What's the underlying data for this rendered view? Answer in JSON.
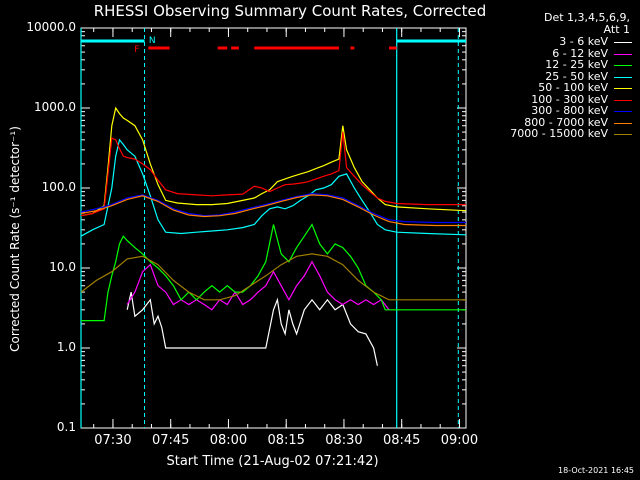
{
  "chart_data": {
    "type": "line",
    "title": "RHESSI Observing Summary Count Rates, Corrected",
    "xlabel": "Start Time (21-Aug-02 07:21:42)",
    "ylabel": "Corrected Count Rate (s⁻¹ detector⁻¹)",
    "yscale": "log",
    "ylim": [
      0.1,
      10000
    ],
    "xlim_minutes": [
      0,
      100
    ],
    "yticks": [
      "0.1",
      "1.0",
      "10.0",
      "100.0",
      "1000.0",
      "10000.0"
    ],
    "xticks": [
      {
        "label": "07:30",
        "m": 8.3
      },
      {
        "label": "07:45",
        "m": 23.3
      },
      {
        "label": "08:00",
        "m": 38.3
      },
      {
        "label": "08:15",
        "m": 53.3
      },
      {
        "label": "08:30",
        "m": 68.3
      },
      {
        "label": "08:45",
        "m": 83.3
      },
      {
        "label": "09:00",
        "m": 98.3
      }
    ],
    "legend_header": [
      "Det 1,3,4,5,6,9,",
      "Att 1"
    ],
    "legend_position": "right",
    "series": [
      {
        "name": "3 - 6 keV",
        "color": "#ffffff",
        "points": [
          [
            12,
            3
          ],
          [
            13,
            5
          ],
          [
            14,
            2.5
          ],
          [
            16,
            3
          ],
          [
            18,
            4
          ],
          [
            19,
            2
          ],
          [
            20,
            2.5
          ],
          [
            21,
            1.8
          ],
          [
            22,
            1
          ],
          [
            30,
            1
          ],
          [
            40,
            1
          ],
          [
            45,
            1
          ],
          [
            48,
            1
          ],
          [
            50,
            3
          ],
          [
            51,
            4
          ],
          [
            52,
            2
          ],
          [
            53,
            1.5
          ],
          [
            54,
            3
          ],
          [
            55,
            2
          ],
          [
            56,
            1.5
          ],
          [
            58,
            3
          ],
          [
            60,
            4
          ],
          [
            62,
            3
          ],
          [
            64,
            4
          ],
          [
            66,
            3
          ],
          [
            68,
            3.5
          ],
          [
            70,
            2
          ],
          [
            72,
            1.6
          ],
          [
            74,
            1.5
          ],
          [
            76,
            1
          ],
          [
            77,
            0.6
          ]
        ]
      },
      {
        "name": "6 - 12 keV",
        "color": "#ff00ff",
        "points": [
          [
            12,
            3.5
          ],
          [
            14,
            5
          ],
          [
            16,
            9
          ],
          [
            18,
            11
          ],
          [
            20,
            6
          ],
          [
            22,
            5
          ],
          [
            24,
            3.5
          ],
          [
            26,
            4
          ],
          [
            28,
            3.5
          ],
          [
            30,
            4
          ],
          [
            32,
            3.5
          ],
          [
            34,
            3
          ],
          [
            36,
            4
          ],
          [
            38,
            3.5
          ],
          [
            40,
            5
          ],
          [
            42,
            3.5
          ],
          [
            44,
            4
          ],
          [
            46,
            5
          ],
          [
            48,
            6
          ],
          [
            50,
            9
          ],
          [
            52,
            6
          ],
          [
            54,
            4
          ],
          [
            56,
            6
          ],
          [
            58,
            8
          ],
          [
            60,
            12
          ],
          [
            62,
            8
          ],
          [
            64,
            5
          ],
          [
            66,
            4
          ],
          [
            68,
            3.5
          ],
          [
            70,
            4
          ],
          [
            72,
            3.5
          ],
          [
            74,
            4
          ],
          [
            76,
            3.5
          ],
          [
            78,
            4
          ],
          [
            80,
            3
          ]
        ]
      },
      {
        "name": "12 - 25 keV",
        "color": "#00ff00",
        "points": [
          [
            0,
            2.2
          ],
          [
            6,
            2.2
          ],
          [
            7,
            5
          ],
          [
            8,
            8
          ],
          [
            9,
            12
          ],
          [
            10,
            20
          ],
          [
            11,
            25
          ],
          [
            12,
            22
          ],
          [
            14,
            18
          ],
          [
            16,
            15
          ],
          [
            18,
            12
          ],
          [
            20,
            10
          ],
          [
            22,
            8
          ],
          [
            24,
            6
          ],
          [
            26,
            4
          ],
          [
            28,
            5
          ],
          [
            30,
            4
          ],
          [
            32,
            5
          ],
          [
            34,
            6
          ],
          [
            36,
            5
          ],
          [
            38,
            6
          ],
          [
            40,
            5
          ],
          [
            42,
            5
          ],
          [
            44,
            6
          ],
          [
            46,
            8
          ],
          [
            48,
            12
          ],
          [
            50,
            35
          ],
          [
            52,
            15
          ],
          [
            54,
            12
          ],
          [
            56,
            18
          ],
          [
            58,
            25
          ],
          [
            60,
            35
          ],
          [
            62,
            20
          ],
          [
            64,
            15
          ],
          [
            66,
            20
          ],
          [
            68,
            18
          ],
          [
            70,
            14
          ],
          [
            72,
            10
          ],
          [
            74,
            6
          ],
          [
            76,
            5
          ],
          [
            78,
            4
          ],
          [
            79,
            3
          ],
          [
            80,
            3
          ],
          [
            100,
            3
          ]
        ]
      },
      {
        "name": "25 - 50 keV",
        "color": "#00ffff",
        "points": [
          [
            0,
            25
          ],
          [
            3,
            30
          ],
          [
            6,
            35
          ],
          [
            8,
            100
          ],
          [
            9,
            250
          ],
          [
            10,
            400
          ],
          [
            11,
            350
          ],
          [
            12,
            300
          ],
          [
            14,
            250
          ],
          [
            16,
            150
          ],
          [
            18,
            80
          ],
          [
            20,
            40
          ],
          [
            22,
            28
          ],
          [
            26,
            27
          ],
          [
            30,
            28
          ],
          [
            34,
            29
          ],
          [
            38,
            30
          ],
          [
            42,
            32
          ],
          [
            45,
            35
          ],
          [
            47,
            45
          ],
          [
            49,
            55
          ],
          [
            51,
            58
          ],
          [
            53,
            55
          ],
          [
            55,
            60
          ],
          [
            57,
            70
          ],
          [
            59,
            80
          ],
          [
            61,
            95
          ],
          [
            63,
            100
          ],
          [
            65,
            110
          ],
          [
            67,
            140
          ],
          [
            69,
            150
          ],
          [
            71,
            100
          ],
          [
            73,
            70
          ],
          [
            75,
            50
          ],
          [
            77,
            35
          ],
          [
            79,
            30
          ],
          [
            82,
            28
          ],
          [
            90,
            27
          ],
          [
            100,
            26
          ]
        ]
      },
      {
        "name": "50 - 100 keV",
        "color": "#ffff00",
        "points": [
          [
            0,
            45
          ],
          [
            3,
            48
          ],
          [
            6,
            60
          ],
          [
            7,
            180
          ],
          [
            8,
            600
          ],
          [
            9,
            1000
          ],
          [
            10,
            850
          ],
          [
            11,
            750
          ],
          [
            12,
            700
          ],
          [
            14,
            600
          ],
          [
            16,
            400
          ],
          [
            18,
            200
          ],
          [
            20,
            110
          ],
          [
            22,
            70
          ],
          [
            25,
            65
          ],
          [
            30,
            62
          ],
          [
            34,
            62
          ],
          [
            38,
            64
          ],
          [
            42,
            70
          ],
          [
            45,
            75
          ],
          [
            47,
            85
          ],
          [
            49,
            95
          ],
          [
            51,
            120
          ],
          [
            53,
            130
          ],
          [
            55,
            140
          ],
          [
            57,
            150
          ],
          [
            59,
            160
          ],
          [
            61,
            175
          ],
          [
            63,
            190
          ],
          [
            65,
            210
          ],
          [
            67,
            230
          ],
          [
            68,
            600
          ],
          [
            69,
            300
          ],
          [
            71,
            180
          ],
          [
            73,
            120
          ],
          [
            75,
            95
          ],
          [
            77,
            75
          ],
          [
            79,
            62
          ],
          [
            82,
            58
          ],
          [
            90,
            55
          ],
          [
            100,
            52
          ]
        ]
      },
      {
        "name": "100 - 300 keV",
        "color": "#ff0000",
        "points": [
          [
            0,
            45
          ],
          [
            3,
            48
          ],
          [
            6,
            55
          ],
          [
            7,
            150
          ],
          [
            8,
            420
          ],
          [
            9,
            400
          ],
          [
            10,
            310
          ],
          [
            11,
            250
          ],
          [
            12,
            240
          ],
          [
            14,
            230
          ],
          [
            16,
            200
          ],
          [
            18,
            170
          ],
          [
            20,
            125
          ],
          [
            22,
            95
          ],
          [
            25,
            85
          ],
          [
            30,
            82
          ],
          [
            34,
            80
          ],
          [
            38,
            82
          ],
          [
            42,
            84
          ],
          [
            45,
            105
          ],
          [
            47,
            100
          ],
          [
            49,
            90
          ],
          [
            51,
            100
          ],
          [
            53,
            110
          ],
          [
            55,
            112
          ],
          [
            57,
            115
          ],
          [
            59,
            120
          ],
          [
            61,
            130
          ],
          [
            63,
            140
          ],
          [
            65,
            150
          ],
          [
            67,
            165
          ],
          [
            68,
            500
          ],
          [
            69,
            180
          ],
          [
            71,
            140
          ],
          [
            73,
            110
          ],
          [
            75,
            90
          ],
          [
            77,
            75
          ],
          [
            79,
            68
          ],
          [
            82,
            64
          ],
          [
            90,
            62
          ],
          [
            100,
            62
          ]
        ]
      },
      {
        "name": "300 - 800 keV",
        "color": "#0000ff",
        "points": [
          [
            0,
            50
          ],
          [
            4,
            55
          ],
          [
            8,
            62
          ],
          [
            12,
            75
          ],
          [
            16,
            82
          ],
          [
            20,
            70
          ],
          [
            24,
            55
          ],
          [
            28,
            48
          ],
          [
            32,
            45
          ],
          [
            36,
            46
          ],
          [
            40,
            50
          ],
          [
            44,
            56
          ],
          [
            48,
            62
          ],
          [
            52,
            70
          ],
          [
            56,
            78
          ],
          [
            60,
            85
          ],
          [
            64,
            82
          ],
          [
            68,
            75
          ],
          [
            72,
            60
          ],
          [
            76,
            48
          ],
          [
            80,
            40
          ],
          [
            84,
            38
          ],
          [
            92,
            37
          ],
          [
            100,
            37
          ]
        ]
      },
      {
        "name": "800 - 7000 keV",
        "color": "#ff8000",
        "points": [
          [
            0,
            48
          ],
          [
            4,
            52
          ],
          [
            8,
            60
          ],
          [
            12,
            72
          ],
          [
            16,
            80
          ],
          [
            20,
            68
          ],
          [
            24,
            53
          ],
          [
            28,
            46
          ],
          [
            32,
            44
          ],
          [
            36,
            45
          ],
          [
            40,
            48
          ],
          [
            44,
            54
          ],
          [
            48,
            60
          ],
          [
            52,
            68
          ],
          [
            56,
            76
          ],
          [
            60,
            82
          ],
          [
            64,
            80
          ],
          [
            68,
            72
          ],
          [
            72,
            58
          ],
          [
            76,
            46
          ],
          [
            80,
            38
          ],
          [
            84,
            35
          ],
          [
            92,
            34
          ],
          [
            100,
            34
          ]
        ]
      },
      {
        "name": "7000 - 15000 keV",
        "color": "#a08000",
        "points": [
          [
            0,
            5
          ],
          [
            4,
            7
          ],
          [
            8,
            9
          ],
          [
            12,
            13
          ],
          [
            16,
            14
          ],
          [
            20,
            11
          ],
          [
            24,
            7
          ],
          [
            28,
            5
          ],
          [
            32,
            4
          ],
          [
            36,
            4
          ],
          [
            40,
            4.5
          ],
          [
            44,
            6
          ],
          [
            48,
            8
          ],
          [
            52,
            11
          ],
          [
            56,
            14
          ],
          [
            60,
            15
          ],
          [
            64,
            14
          ],
          [
            68,
            11
          ],
          [
            72,
            7
          ],
          [
            76,
            5
          ],
          [
            80,
            4
          ],
          [
            84,
            4
          ],
          [
            92,
            4
          ],
          [
            100,
            4
          ]
        ]
      }
    ],
    "annotations": {
      "saa_intervals": [
        [
          0,
          16.5
        ],
        [
          82,
          100
        ]
      ],
      "saa_color": "#00ffff",
      "vlines_solid": [
        0,
        82
      ],
      "vlines_dashed": [
        16.5,
        98
      ],
      "flare_intervals": [
        [
          17.5,
          23
        ],
        [
          35.5,
          38
        ],
        [
          39,
          41
        ],
        [
          45,
          67
        ],
        [
          70,
          71
        ],
        [
          80,
          82
        ]
      ],
      "flare_color": "#ff0000",
      "marker_F": {
        "text": "F",
        "m": 14.5
      },
      "marker_N": {
        "text": "N",
        "m": 18.5
      }
    }
  },
  "timestamp": "18-Oct-2021 16:45"
}
